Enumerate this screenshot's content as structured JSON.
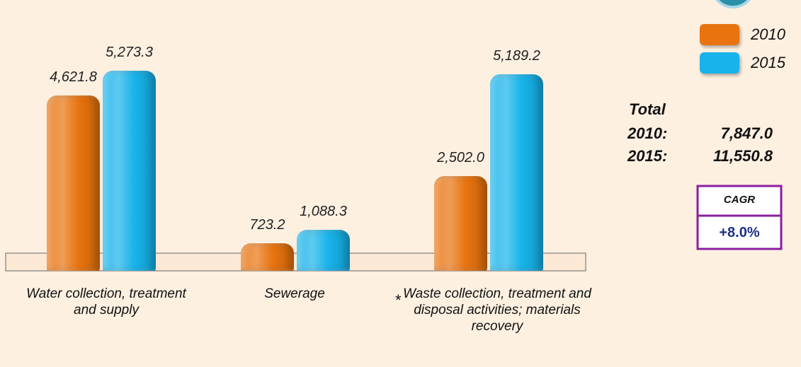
{
  "chart_data": {
    "type": "bar",
    "categories": [
      "Water collection, treatment and supply",
      "Sewerage",
      "Waste collection, treatment and disposal activities; materials recovery"
    ],
    "note_marker": "*",
    "series": [
      {
        "name": "2010",
        "color": "#e8730f",
        "values": [
          4621.8,
          723.2,
          2502.0
        ],
        "value_labels": [
          "4,621.8",
          "723.2",
          "2,502.0"
        ]
      },
      {
        "name": "2015",
        "color": "#17b3ea",
        "values": [
          5273.3,
          1088.3,
          5189.2
        ],
        "value_labels": [
          "5,273.3",
          "1,088.3",
          "5,189.2"
        ]
      }
    ],
    "totals": {
      "title": "Total",
      "items": [
        {
          "label": "2010:",
          "value": "7,847.0"
        },
        {
          "label": "2015:",
          "value": "11,550.8"
        }
      ]
    },
    "cagr": {
      "label": "CAGR",
      "value": "+8.0%"
    }
  }
}
